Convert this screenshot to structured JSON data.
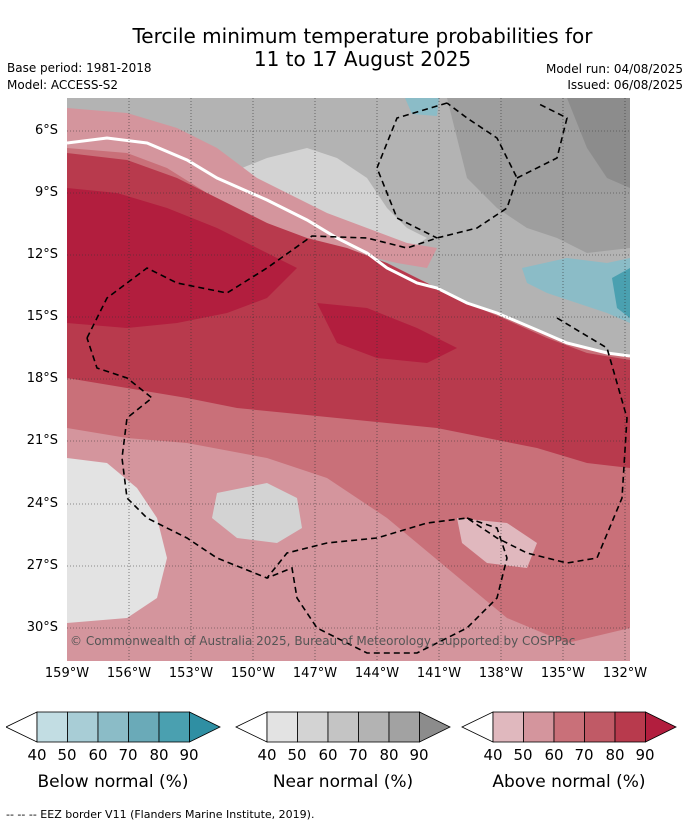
{
  "header": {
    "title_line1": "Tercile minimum temperature probabilities for",
    "title_line2": "11 to 17 August 2025",
    "base_period": "Base period: 1981-2018",
    "model": "Model: ACCESS-S2",
    "model_run": "Model run: 04/08/2025",
    "issued": "Issued: 06/08/2025"
  },
  "map": {
    "lat_labels": [
      "6°S",
      "9°S",
      "12°S",
      "15°S",
      "18°S",
      "21°S",
      "24°S",
      "27°S",
      "30°S"
    ],
    "lon_labels": [
      "159°W",
      "156°W",
      "153°W",
      "150°W",
      "147°W",
      "144°W",
      "141°W",
      "138°W",
      "135°W",
      "132°W"
    ],
    "copyright": "© Commonwealth of Australia 2025, Bureau of Meteorology, supported by COSPPac",
    "colors": {
      "above": [
        "#ffffff",
        "#e0b8be",
        "#d4959d",
        "#c97079",
        "#c05a66",
        "#b83a4d",
        "#b21e3e"
      ],
      "near": [
        "#ffffff",
        "#e3e3e3",
        "#d3d3d3",
        "#c4c4c4",
        "#b3b3b3",
        "#a2a2a2",
        "#8c8c8c"
      ],
      "below": [
        "#ffffff",
        "#c2dde3",
        "#a8cdd6",
        "#8bbcc7",
        "#6aaab8",
        "#4aa0b0",
        "#2f8fa3"
      ]
    }
  },
  "colorbars": [
    {
      "title": "Below normal (%)",
      "ticks": [
        "40",
        "50",
        "60",
        "70",
        "80",
        "90"
      ],
      "colors": [
        "#c2dde3",
        "#a8cdd6",
        "#8bbcc7",
        "#6aaab8",
        "#4aa0b0",
        "#2f8fa3"
      ]
    },
    {
      "title": "Near normal (%)",
      "ticks": [
        "40",
        "50",
        "60",
        "70",
        "80",
        "90"
      ],
      "colors": [
        "#e3e3e3",
        "#d3d3d3",
        "#c4c4c4",
        "#b3b3b3",
        "#a2a2a2",
        "#8c8c8c"
      ]
    },
    {
      "title": "Above normal (%)",
      "ticks": [
        "40",
        "50",
        "60",
        "70",
        "80",
        "90"
      ],
      "colors": [
        "#e0b8be",
        "#d4959d",
        "#c97079",
        "#c05a66",
        "#b83a4d",
        "#b21e3e"
      ]
    }
  ],
  "footer": "--  --  -- EEZ border V11 (Flanders Marine Institute, 2019)."
}
